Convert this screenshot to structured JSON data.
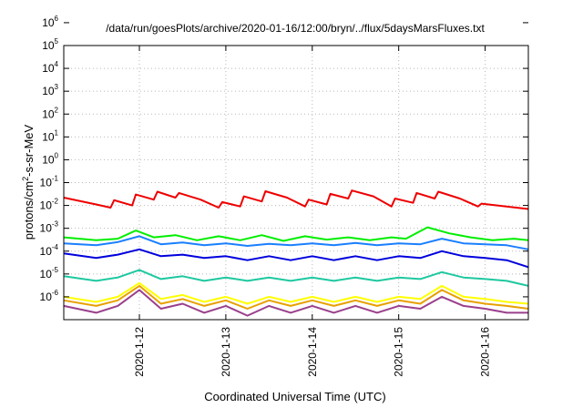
{
  "chart_data": {
    "type": "line",
    "title": "/data/run/goesPlots/archive/2020-01-16/12:00/bryn/../flux/5daysMarsFluxes.txt",
    "xlabel": "Coordinated Universal Time (UTC)",
    "ylabel_prefix": "protons/cm",
    "ylabel_sup": "2",
    "ylabel_suffix": "-s-sr-MeV",
    "scale_y": "log",
    "ylim": [
      1e-06,
      1000000.0
    ],
    "y_ticks": [
      {
        "base": "10",
        "exp": "6"
      },
      {
        "base": "10",
        "exp": "5"
      },
      {
        "base": "10",
        "exp": "4"
      },
      {
        "base": "10",
        "exp": "3"
      },
      {
        "base": "10",
        "exp": "2"
      },
      {
        "base": "10",
        "exp": "1"
      },
      {
        "base": "10",
        "exp": "0"
      },
      {
        "base": "10",
        "exp": "-1"
      },
      {
        "base": "10",
        "exp": "-2"
      },
      {
        "base": "10",
        "exp": "-3"
      },
      {
        "base": "10",
        "exp": "-4"
      },
      {
        "base": "10",
        "exp": "-5"
      },
      {
        "base": "10",
        "exp": "-6"
      }
    ],
    "xlim": [
      "2020-01-11T03:00",
      "2020-01-16T12:00"
    ],
    "x_ticks": [
      "2020-1-12",
      "2020-1-13",
      "2020-1-14",
      "2020-1-15",
      "2020-1-16"
    ],
    "grid": true,
    "legend": "none",
    "colors": {
      "red": "#ee0000",
      "green": "#00ee00",
      "blue_light": "#1a7fff",
      "blue_dark": "#0000dd",
      "teal": "#1ec8a0",
      "yellow": "#ffff00",
      "orange": "#e8a000",
      "purple": "#9a3f8c"
    },
    "series": [
      {
        "color": "red",
        "x": [
          "2020-01-11T03:00",
          "2020-01-11T12:00",
          "2020-01-11T16:00",
          "2020-01-11T17:00",
          "2020-01-11T22:00",
          "2020-01-11T23:00",
          "2020-01-12T04:00",
          "2020-01-12T05:00",
          "2020-01-12T10:00",
          "2020-01-12T11:00",
          "2020-01-12T17:00",
          "2020-01-12T22:00",
          "2020-01-12T23:00",
          "2020-01-13T04:00",
          "2020-01-13T05:00",
          "2020-01-13T10:00",
          "2020-01-13T11:00",
          "2020-01-13T17:00",
          "2020-01-13T22:00",
          "2020-01-13T23:00",
          "2020-01-14T04:00",
          "2020-01-14T05:00",
          "2020-01-14T10:00",
          "2020-01-14T11:00",
          "2020-01-14T17:00",
          "2020-01-14T22:00",
          "2020-01-14T23:00",
          "2020-01-15T04:00",
          "2020-01-15T05:00",
          "2020-01-15T10:00",
          "2020-01-15T11:00",
          "2020-01-15T17:00",
          "2020-01-15T22:00",
          "2020-01-15T23:00",
          "2020-01-16T12:00"
        ],
        "y": [
          0.22,
          0.11,
          0.08,
          0.17,
          0.1,
          0.3,
          0.18,
          0.4,
          0.22,
          0.35,
          0.18,
          0.08,
          0.14,
          0.09,
          0.25,
          0.15,
          0.42,
          0.22,
          0.09,
          0.18,
          0.11,
          0.32,
          0.2,
          0.45,
          0.25,
          0.09,
          0.2,
          0.13,
          0.35,
          0.2,
          0.4,
          0.2,
          0.09,
          0.12,
          0.07
        ]
      },
      {
        "color": "green",
        "x": [
          "2020-01-11T03:00",
          "2020-01-11T12:00",
          "2020-01-11T18:00",
          "2020-01-11T23:00",
          "2020-01-12T04:00",
          "2020-01-12T10:00",
          "2020-01-12T16:00",
          "2020-01-12T22:00",
          "2020-01-13T04:00",
          "2020-01-13T10:00",
          "2020-01-13T16:00",
          "2020-01-13T22:00",
          "2020-01-14T04:00",
          "2020-01-14T10:00",
          "2020-01-14T16:00",
          "2020-01-14T22:00",
          "2020-01-15T02:00",
          "2020-01-15T08:00",
          "2020-01-15T14:00",
          "2020-01-15T20:00",
          "2020-01-16T02:00",
          "2020-01-16T08:00",
          "2020-01-16T12:00"
        ],
        "y": [
          0.004,
          0.003,
          0.0035,
          0.008,
          0.004,
          0.005,
          0.003,
          0.0045,
          0.003,
          0.005,
          0.0028,
          0.0045,
          0.0032,
          0.004,
          0.003,
          0.004,
          0.0035,
          0.011,
          0.006,
          0.004,
          0.003,
          0.0035,
          0.003
        ]
      },
      {
        "color": "blue_light",
        "x": [
          "2020-01-11T03:00",
          "2020-01-11T12:00",
          "2020-01-11T18:00",
          "2020-01-12T00:00",
          "2020-01-12T06:00",
          "2020-01-12T12:00",
          "2020-01-12T18:00",
          "2020-01-13T00:00",
          "2020-01-13T06:00",
          "2020-01-13T12:00",
          "2020-01-13T18:00",
          "2020-01-14T00:00",
          "2020-01-14T06:00",
          "2020-01-14T12:00",
          "2020-01-14T18:00",
          "2020-01-15T00:00",
          "2020-01-15T06:00",
          "2020-01-15T12:00",
          "2020-01-15T18:00",
          "2020-01-16T00:00",
          "2020-01-16T06:00",
          "2020-01-16T12:00"
        ],
        "y": [
          0.0022,
          0.0018,
          0.0025,
          0.0045,
          0.002,
          0.0024,
          0.0018,
          0.0022,
          0.0017,
          0.0021,
          0.0018,
          0.0022,
          0.0018,
          0.0023,
          0.0018,
          0.0022,
          0.002,
          0.0035,
          0.0022,
          0.002,
          0.0018,
          0.0012
        ]
      },
      {
        "color": "blue_dark",
        "x": [
          "2020-01-11T03:00",
          "2020-01-11T12:00",
          "2020-01-11T18:00",
          "2020-01-12T00:00",
          "2020-01-12T06:00",
          "2020-01-12T12:00",
          "2020-01-12T18:00",
          "2020-01-13T00:00",
          "2020-01-13T06:00",
          "2020-01-13T12:00",
          "2020-01-13T18:00",
          "2020-01-14T00:00",
          "2020-01-14T06:00",
          "2020-01-14T12:00",
          "2020-01-14T18:00",
          "2020-01-15T00:00",
          "2020-01-15T06:00",
          "2020-01-15T12:00",
          "2020-01-15T18:00",
          "2020-01-16T00:00",
          "2020-01-16T06:00",
          "2020-01-16T12:00"
        ],
        "y": [
          0.0008,
          0.0005,
          0.0007,
          0.0012,
          0.0006,
          0.0007,
          0.0005,
          0.0006,
          0.0004,
          0.0006,
          0.0004,
          0.0006,
          0.0004,
          0.0006,
          0.0004,
          0.0006,
          0.0005,
          0.001,
          0.0006,
          0.0005,
          0.0004,
          0.0002
        ]
      },
      {
        "color": "teal",
        "x": [
          "2020-01-11T03:00",
          "2020-01-11T12:00",
          "2020-01-11T18:00",
          "2020-01-12T00:00",
          "2020-01-12T06:00",
          "2020-01-12T12:00",
          "2020-01-12T18:00",
          "2020-01-13T00:00",
          "2020-01-13T06:00",
          "2020-01-13T12:00",
          "2020-01-13T18:00",
          "2020-01-14T00:00",
          "2020-01-14T06:00",
          "2020-01-14T12:00",
          "2020-01-14T18:00",
          "2020-01-15T00:00",
          "2020-01-15T06:00",
          "2020-01-15T12:00",
          "2020-01-15T18:00",
          "2020-01-16T00:00",
          "2020-01-16T06:00",
          "2020-01-16T12:00"
        ],
        "y": [
          8e-05,
          5e-05,
          7e-05,
          0.00015,
          6e-05,
          8e-05,
          5e-05,
          7e-05,
          5e-05,
          7e-05,
          5e-05,
          7e-05,
          5e-05,
          7e-05,
          5e-05,
          7e-05,
          6e-05,
          0.00012,
          7e-05,
          6e-05,
          5e-05,
          3e-05
        ]
      },
      {
        "color": "yellow",
        "x": [
          "2020-01-11T03:00",
          "2020-01-11T12:00",
          "2020-01-11T18:00",
          "2020-01-12T00:00",
          "2020-01-12T06:00",
          "2020-01-12T12:00",
          "2020-01-12T18:00",
          "2020-01-13T00:00",
          "2020-01-13T06:00",
          "2020-01-13T12:00",
          "2020-01-13T18:00",
          "2020-01-14T00:00",
          "2020-01-14T06:00",
          "2020-01-14T12:00",
          "2020-01-14T18:00",
          "2020-01-15T00:00",
          "2020-01-15T06:00",
          "2020-01-15T12:00",
          "2020-01-15T18:00",
          "2020-01-16T00:00",
          "2020-01-16T06:00",
          "2020-01-16T12:00"
        ],
        "y": [
          1e-05,
          6e-06,
          1e-05,
          4e-05,
          8e-06,
          1.2e-05,
          6e-06,
          1e-05,
          5e-06,
          1e-05,
          6e-06,
          1e-05,
          6e-06,
          1e-05,
          6e-06,
          1e-05,
          8e-06,
          3e-05,
          1e-05,
          8e-06,
          6e-06,
          5e-06
        ]
      },
      {
        "color": "orange",
        "x": [
          "2020-01-11T03:00",
          "2020-01-11T12:00",
          "2020-01-11T18:00",
          "2020-01-12T00:00",
          "2020-01-12T06:00",
          "2020-01-12T12:00",
          "2020-01-12T18:00",
          "2020-01-13T00:00",
          "2020-01-13T06:00",
          "2020-01-13T12:00",
          "2020-01-13T18:00",
          "2020-01-14T00:00",
          "2020-01-14T06:00",
          "2020-01-14T12:00",
          "2020-01-14T18:00",
          "2020-01-15T00:00",
          "2020-01-15T06:00",
          "2020-01-15T12:00",
          "2020-01-15T18:00",
          "2020-01-16T00:00",
          "2020-01-16T06:00",
          "2020-01-16T12:00"
        ],
        "y": [
          7e-06,
          4e-06,
          7e-06,
          3e-05,
          5e-06,
          8e-06,
          4e-06,
          7e-06,
          3e-06,
          7e-06,
          4e-06,
          7e-06,
          4e-06,
          7e-06,
          4e-06,
          7e-06,
          5e-06,
          2e-05,
          7e-06,
          5e-06,
          4e-06,
          3e-06
        ]
      },
      {
        "color": "purple",
        "x": [
          "2020-01-11T03:00",
          "2020-01-11T12:00",
          "2020-01-11T18:00",
          "2020-01-12T00:00",
          "2020-01-12T06:00",
          "2020-01-12T12:00",
          "2020-01-12T18:00",
          "2020-01-13T00:00",
          "2020-01-13T06:00",
          "2020-01-13T12:00",
          "2020-01-13T18:00",
          "2020-01-14T00:00",
          "2020-01-14T06:00",
          "2020-01-14T12:00",
          "2020-01-14T18:00",
          "2020-01-15T00:00",
          "2020-01-15T06:00",
          "2020-01-15T12:00",
          "2020-01-15T18:00",
          "2020-01-16T00:00",
          "2020-01-16T06:00",
          "2020-01-16T12:00"
        ],
        "y": [
          4e-06,
          2e-06,
          4e-06,
          2e-05,
          3e-06,
          5e-06,
          2e-06,
          4e-06,
          1.5e-06,
          4e-06,
          2e-06,
          4e-06,
          2e-06,
          4e-06,
          2e-06,
          4e-06,
          3e-06,
          1e-05,
          4e-06,
          3e-06,
          2e-06,
          2e-06
        ]
      }
    ]
  }
}
